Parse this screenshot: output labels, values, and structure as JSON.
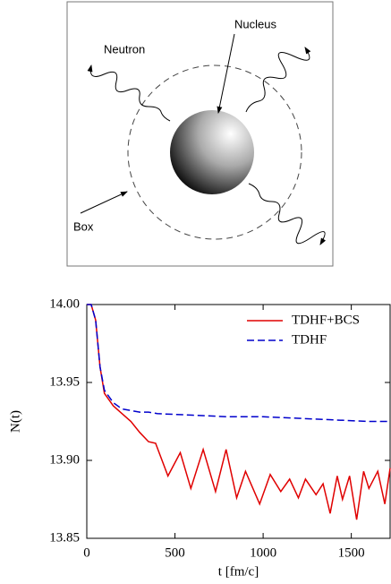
{
  "diagram": {
    "labels": {
      "nucleus": "Nucleus",
      "neutron": "Neutron",
      "box": "Box"
    }
  },
  "chart_data": {
    "type": "line",
    "xlabel": "t [fm/c]",
    "ylabel": "N(t)",
    "xlim": [
      0,
      1720
    ],
    "ylim": [
      13.85,
      14.0
    ],
    "xticks": [
      0,
      500,
      1000,
      1500
    ],
    "yticks": [
      {
        "value": 13.85,
        "label": "13.85"
      },
      {
        "value": 13.9,
        "label": "13.90"
      },
      {
        "value": 13.95,
        "label": "13.95"
      },
      {
        "value": 14.0,
        "label": "14.00"
      }
    ],
    "legend": "upper right",
    "series": [
      {
        "name": "TDHF+BCS",
        "color": "#e00000",
        "dash": "solid",
        "x": [
          0,
          25,
          50,
          75,
          100,
          150,
          200,
          250,
          300,
          350,
          390,
          460,
          530,
          590,
          660,
          730,
          790,
          850,
          900,
          980,
          1040,
          1100,
          1150,
          1200,
          1240,
          1300,
          1340,
          1380,
          1420,
          1450,
          1490,
          1530,
          1570,
          1600,
          1650,
          1690,
          1720
        ],
        "values": [
          14.0,
          14.0,
          13.99,
          13.96,
          13.943,
          13.935,
          13.93,
          13.925,
          13.918,
          13.912,
          13.911,
          13.89,
          13.905,
          13.882,
          13.907,
          13.88,
          13.907,
          13.876,
          13.893,
          13.872,
          13.891,
          13.88,
          13.888,
          13.876,
          13.888,
          13.878,
          13.885,
          13.866,
          13.89,
          13.875,
          13.89,
          13.862,
          13.893,
          13.882,
          13.893,
          13.872,
          13.895
        ]
      },
      {
        "name": "TDHF",
        "color": "#0000cc",
        "dash": "dashed",
        "x": [
          0,
          25,
          50,
          75,
          100,
          150,
          200,
          300,
          350,
          400,
          600,
          800,
          1000,
          1200,
          1400,
          1600,
          1720
        ],
        "values": [
          14.0,
          14.0,
          13.99,
          13.96,
          13.945,
          13.937,
          13.933,
          13.931,
          13.931,
          13.93,
          13.929,
          13.928,
          13.928,
          13.927,
          13.926,
          13.925,
          13.925
        ]
      }
    ]
  }
}
